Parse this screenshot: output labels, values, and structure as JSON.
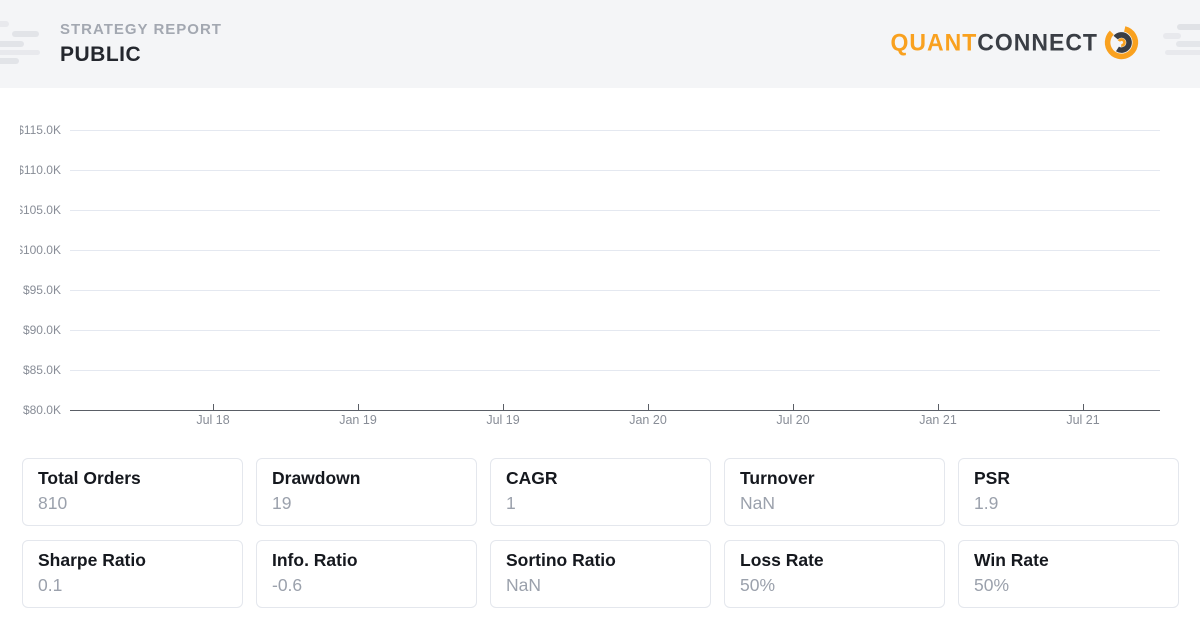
{
  "header": {
    "subtitle": "STRATEGY REPORT",
    "title": "PUBLIC"
  },
  "logo": {
    "word_primary": "QUANT",
    "word_secondary": "CONNECT",
    "mark_icon": "quantconnect-rings-icon"
  },
  "colors": {
    "accent_orange": "#F9A11F",
    "logo_dark": "#3A3E45",
    "header_bg": "#F4F5F7",
    "grid_line": "#E4E8F0",
    "axis_line": "#5A5E66",
    "tick_label": "#888D97",
    "card_border": "#E4E7ED",
    "card_title": "#15181E",
    "card_value": "#9BA1AC"
  },
  "chart_data": {
    "type": "line",
    "title": "",
    "description": "Equity curve plot area of the strategy report; axes and gridlines are shown but no data series is visibly plotted above the baseline.",
    "y_axis": {
      "tick_labels": [
        "$115.0K",
        "$110.0K",
        "$105.0K",
        "$100.0K",
        "$95.0K",
        "$90.0K",
        "$85.0K",
        "$80.0K"
      ],
      "range": [
        80000,
        115000
      ],
      "unit": "USD"
    },
    "x_axis": {
      "tick_labels": [
        "Jul 18",
        "Jan 19",
        "Jul 19",
        "Jan 20",
        "Jul 20",
        "Jan 21",
        "Jul 21"
      ]
    },
    "grid": true,
    "legend": "none",
    "series": []
  },
  "stats": {
    "items": [
      {
        "label": "Total Orders",
        "value": "810"
      },
      {
        "label": "Drawdown",
        "value": "19"
      },
      {
        "label": "CAGR",
        "value": "1"
      },
      {
        "label": "Turnover",
        "value": "NaN"
      },
      {
        "label": "PSR",
        "value": "1.9"
      },
      {
        "label": "Sharpe Ratio",
        "value": "0.1"
      },
      {
        "label": "Info. Ratio",
        "value": "-0.6"
      },
      {
        "label": "Sortino Ratio",
        "value": "NaN"
      },
      {
        "label": "Loss Rate",
        "value": "50%"
      },
      {
        "label": "Win Rate",
        "value": "50%"
      }
    ]
  }
}
